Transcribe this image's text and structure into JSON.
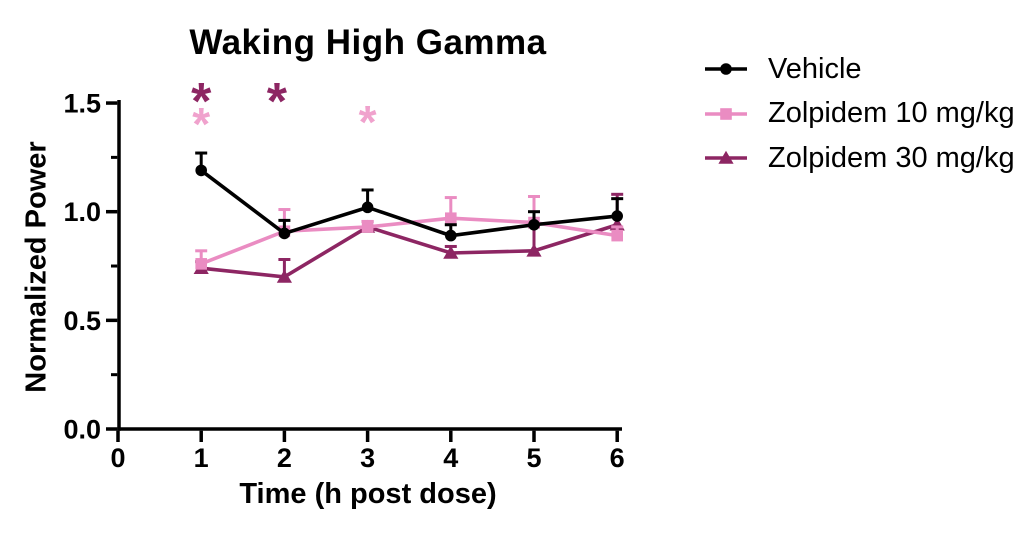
{
  "figure": {
    "background": "#ffffff",
    "text_color": "#000000"
  },
  "chart_data": {
    "type": "line",
    "title": "Waking High Gamma",
    "xlabel": "Time (h post dose)",
    "ylabel": "Normalized Power",
    "grid": false,
    "legend_position": "right of plot, top",
    "xlim": [
      0,
      6
    ],
    "ylim": [
      0,
      1.5
    ],
    "x": [
      1,
      2,
      3,
      4,
      5,
      6
    ],
    "x_ticks": [
      {
        "value": 0,
        "label": "0"
      },
      {
        "value": 1,
        "label": "1"
      },
      {
        "value": 2,
        "label": "2"
      },
      {
        "value": 3,
        "label": "3"
      },
      {
        "value": 4,
        "label": "4"
      },
      {
        "value": 5,
        "label": "5"
      },
      {
        "value": 6,
        "label": "6"
      }
    ],
    "y_ticks": [
      {
        "value": 0,
        "label": "0.0"
      },
      {
        "value": 0.5,
        "label": "0.5"
      },
      {
        "value": 1.0,
        "label": "1.0"
      },
      {
        "value": 1.5,
        "label": "1.5"
      }
    ],
    "y_minor_ticks": [
      0.25,
      0.75,
      1.25
    ],
    "series": [
      {
        "name": "Vehicle",
        "color": "#000000",
        "marker": "circle",
        "values": [
          1.19,
          0.9,
          1.02,
          0.89,
          0.94,
          0.98
        ],
        "errors_upper": [
          0.08,
          0.06,
          0.08,
          0.05,
          0.06,
          0.08
        ]
      },
      {
        "name": "Zolpidem 10 mg/kg",
        "color": "#EA8CC2",
        "marker": "square",
        "values": [
          0.76,
          0.91,
          0.93,
          0.97,
          0.95,
          0.89
        ],
        "errors_upper": [
          0.06,
          0.1,
          0.025,
          0.095,
          0.12,
          0.04
        ]
      },
      {
        "name": "Zolpidem 30 mg/kg",
        "color": "#8D2663",
        "marker": "triangle",
        "values": [
          0.74,
          0.7,
          0.93,
          0.81,
          0.82,
          0.94
        ],
        "errors_upper": [
          0.03,
          0.08,
          0.025,
          0.03,
          0.11,
          0.14
        ]
      }
    ],
    "annotations": [
      {
        "symbol": "*",
        "x": 1,
        "y": 1.55,
        "color": "#8D2663",
        "size": 52,
        "refers_to": "Zolpidem 30 mg/kg"
      },
      {
        "symbol": "*",
        "x": 1,
        "y": 1.44,
        "color": "#F0A2CD",
        "size": 46,
        "refers_to": "Zolpidem 10 mg/kg"
      },
      {
        "symbol": "*",
        "x": 1.91,
        "y": 1.55,
        "color": "#8D2663",
        "size": 52,
        "refers_to": "Zolpidem 30 mg/kg"
      },
      {
        "symbol": "*",
        "x": 3,
        "y": 1.45,
        "color": "#F0A2CD",
        "size": 46,
        "refers_to": "Zolpidem 10 mg/kg"
      }
    ]
  }
}
